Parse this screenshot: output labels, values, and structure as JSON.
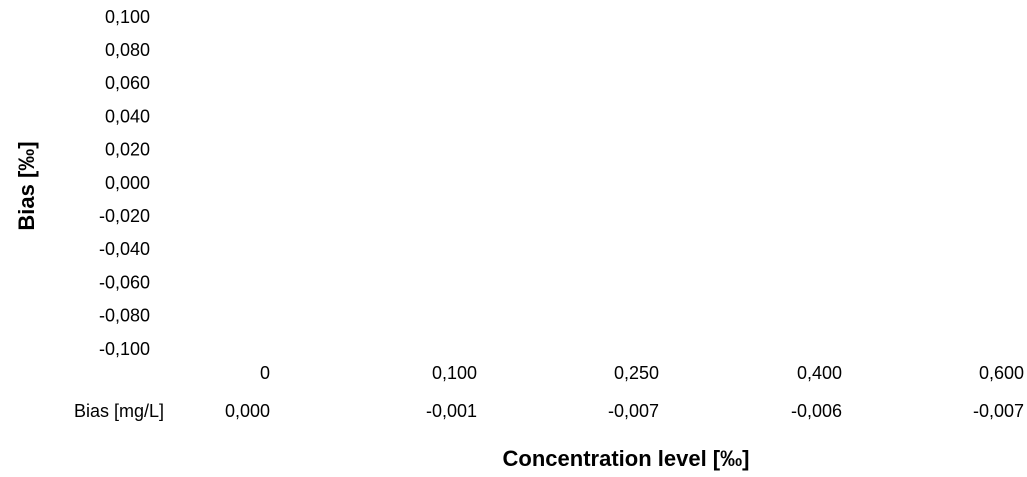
{
  "chart_data": {
    "type": "table",
    "xlabel": "Concentration level [‰]",
    "ylabel": "Bias [‰]",
    "ylim": [
      -0.1,
      0.1
    ],
    "y_ticks": [
      "0,100",
      "0,080",
      "0,060",
      "0,040",
      "0,020",
      "0,000",
      "-0,020",
      "-0,040",
      "-0,060",
      "-0,080",
      "-0,100"
    ],
    "categories": [
      "0",
      "0,100",
      "0,250",
      "0,400",
      "0,600"
    ],
    "series": [
      {
        "name": "Bias [mg/L]",
        "values": [
          0.0,
          -0.001,
          -0.007,
          -0.006,
          -0.007
        ],
        "labels": [
          "0,000",
          "-0,001",
          "-0,007",
          "-0,006",
          "-0,007"
        ]
      }
    ]
  }
}
